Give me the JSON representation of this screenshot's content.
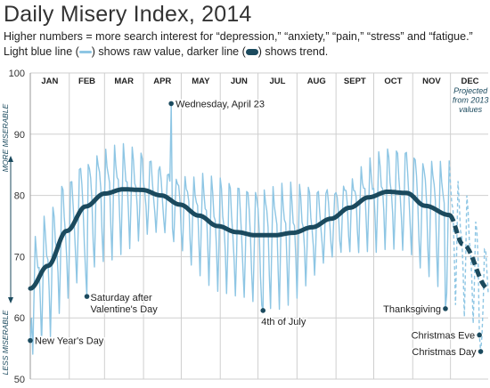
{
  "header": {
    "title": "Daily Misery Index, 2014",
    "subtitle": "Higher numbers = more search interest for “depression,” “anxiety,” “pain,” “stress” and “fatigue.”",
    "legend_light_prefix": "Light blue line (",
    "legend_light_suffix": ") shows raw value, darker line (",
    "legend_dark_suffix": ") shows trend."
  },
  "colors": {
    "raw": "#8ec6e4",
    "trend": "#1b4a5e",
    "grid": "#cfcfcf",
    "text": "#222222",
    "axis_note": "#1b4a5e"
  },
  "chart_data": {
    "type": "line",
    "title": "Daily Misery Index, 2014",
    "ylim": [
      50,
      100
    ],
    "yticks": [
      50,
      60,
      70,
      80,
      90,
      100
    ],
    "grid": true,
    "months": [
      "JAN",
      "FEB",
      "MAR",
      "APR",
      "MAY",
      "JUN",
      "JUL",
      "AUG",
      "SEPT",
      "OCT",
      "NOV",
      "DEC"
    ],
    "y_axis_top_note": "MORE MISERABLE",
    "y_axis_bottom_note": "LESS MISERABLE",
    "projection_note": [
      "Projected",
      "from 2013",
      "values"
    ],
    "trend": {
      "name": "trend",
      "days": [
        1,
        15,
        30,
        45,
        60,
        75,
        90,
        105,
        120,
        135,
        150,
        165,
        180,
        195,
        210,
        225,
        240,
        255,
        270,
        285,
        300,
        315,
        334,
        345,
        365
      ],
      "values": [
        64.8,
        68.5,
        74.2,
        78.2,
        80.3,
        81.0,
        80.9,
        80.0,
        78.5,
        76.7,
        75.0,
        74.0,
        73.5,
        73.5,
        73.9,
        74.8,
        76.2,
        78.0,
        79.7,
        80.6,
        80.4,
        78.3,
        76.8,
        72.0,
        64.8
      ],
      "projected_from_day": 334
    },
    "raw": {
      "name": "raw",
      "weekly_pattern": [
        6.5,
        5.0,
        2.5,
        0.5,
        -4.5,
        -9.5,
        -2.0
      ],
      "wednesday_spike": {
        "day": 113,
        "value": 95
      },
      "projected_from_day": 334
    },
    "annotations": [
      {
        "day": 1,
        "value": 56.3,
        "label": "New Year's Day",
        "label_side": "right"
      },
      {
        "day": 46,
        "value": 63.5,
        "label": "Saturday after|Valentine's Day",
        "label_side": "right"
      },
      {
        "day": 113,
        "value": 95.0,
        "label": "Wednesday, April 23",
        "label_side": "right"
      },
      {
        "day": 186,
        "value": 61.2,
        "label": "4th of July",
        "label_side": "below"
      },
      {
        "day": 331,
        "value": 61.5,
        "label": "Thanksgiving",
        "label_side": "left"
      },
      {
        "day": 358,
        "value": 57.2,
        "label": "Christmas Eve",
        "label_side": "left"
      },
      {
        "day": 359,
        "value": 54.5,
        "label": "Christmas Day",
        "label_side": "left"
      }
    ]
  }
}
